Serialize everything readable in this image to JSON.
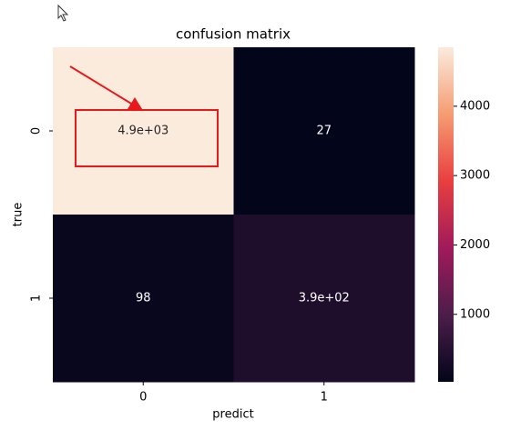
{
  "chart_data": {
    "type": "heatmap",
    "title": "confusion matrix",
    "xlabel": "predict",
    "ylabel": "true",
    "x_categories": [
      "0",
      "1"
    ],
    "y_categories": [
      "0",
      "1"
    ],
    "values": [
      [
        4850,
        27
      ],
      [
        98,
        390
      ]
    ],
    "value_labels": [
      [
        "4.9e+03",
        "27"
      ],
      [
        "98",
        "3.9e+02"
      ]
    ],
    "colormap": "rocket",
    "clim": [
      27,
      4850
    ],
    "cticks": [
      1000,
      2000,
      3000,
      4000
    ]
  }
}
